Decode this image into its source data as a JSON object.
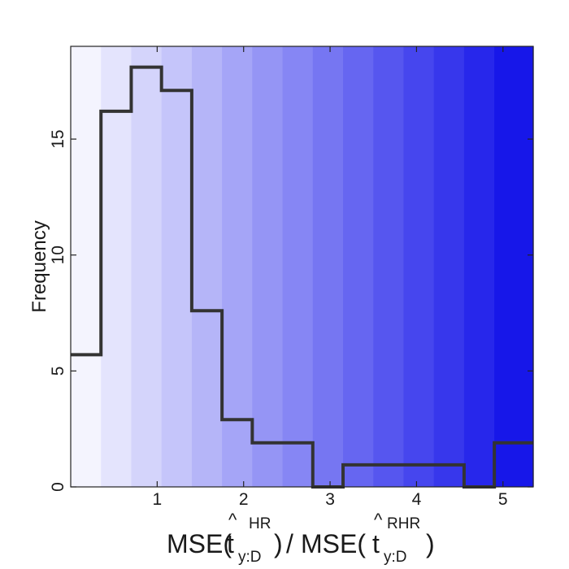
{
  "chart_data": {
    "type": "bar",
    "subtype": "step-histogram",
    "title": "",
    "xlabel": {
      "prefix": "MSE(",
      "var1": "t",
      "sup1": "HR",
      "sub1": "y:D",
      "mid": ")",
      "slash": "/",
      "prefix2": "MSE(",
      "var2": "t",
      "sup2": "RHR",
      "sub2": "y:D",
      "suffix": ")",
      "hat": "^"
    },
    "ylabel": "Frequency",
    "xlim": [
      0.0,
      5.35
    ],
    "ylim": [
      0,
      19
    ],
    "xticks": [
      1,
      2,
      3,
      4,
      5
    ],
    "yticks": [
      0,
      5,
      10,
      15
    ],
    "bin_edges": [
      0.0,
      0.35,
      0.7,
      1.05,
      1.4,
      1.75,
      2.1,
      2.45,
      2.8,
      3.15,
      3.5,
      3.85,
      4.2,
      4.55,
      4.9,
      5.35
    ],
    "values": [
      5.7,
      16.2,
      18.1,
      17.1,
      7.6,
      2.9,
      1.9,
      1.9,
      0,
      0.95,
      0.95,
      0.95,
      0.95,
      0,
      1.9
    ],
    "grid": false,
    "background_gradient": {
      "from": "#f4f4fe",
      "to": "#1717e9"
    },
    "line_color": "#333333"
  }
}
